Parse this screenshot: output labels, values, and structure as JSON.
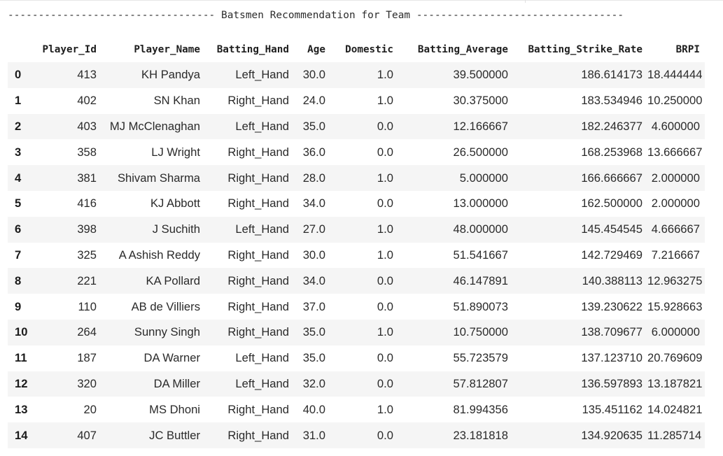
{
  "heading": {
    "text": "---------------------------------- Batsmen Recommendation for Team ----------------------------------"
  },
  "table": {
    "columns": [
      "",
      "Player_Id",
      "Player_Name",
      "Batting_Hand",
      "Age",
      "Domestic",
      "Batting_Average",
      "Batting_Strike_Rate",
      "BRPI"
    ],
    "rows": [
      [
        "0",
        "413",
        "KH Pandya",
        "Left_Hand",
        "30.0",
        "1.0",
        "39.500000",
        "186.614173",
        "18.444444"
      ],
      [
        "1",
        "402",
        "SN Khan",
        "Right_Hand",
        "24.0",
        "1.0",
        "30.375000",
        "183.534946",
        "10.250000"
      ],
      [
        "2",
        "403",
        "MJ McClenaghan",
        "Left_Hand",
        "35.0",
        "0.0",
        "12.166667",
        "182.246377",
        "4.600000"
      ],
      [
        "3",
        "358",
        "LJ Wright",
        "Right_Hand",
        "36.0",
        "0.0",
        "26.500000",
        "168.253968",
        "13.666667"
      ],
      [
        "4",
        "381",
        "Shivam Sharma",
        "Right_Hand",
        "28.0",
        "1.0",
        "5.000000",
        "166.666667",
        "2.000000"
      ],
      [
        "5",
        "416",
        "KJ Abbott",
        "Right_Hand",
        "34.0",
        "0.0",
        "13.000000",
        "162.500000",
        "2.000000"
      ],
      [
        "6",
        "398",
        "J Suchith",
        "Left_Hand",
        "27.0",
        "1.0",
        "48.000000",
        "145.454545",
        "4.666667"
      ],
      [
        "7",
        "325",
        "A Ashish Reddy",
        "Right_Hand",
        "30.0",
        "1.0",
        "51.541667",
        "142.729469",
        "7.216667"
      ],
      [
        "8",
        "221",
        "KA Pollard",
        "Right_Hand",
        "34.0",
        "0.0",
        "46.147891",
        "140.388113",
        "12.963275"
      ],
      [
        "9",
        "110",
        "AB de Villiers",
        "Right_Hand",
        "37.0",
        "0.0",
        "51.890073",
        "139.230622",
        "15.928663"
      ],
      [
        "10",
        "264",
        "Sunny Singh",
        "Right_Hand",
        "35.0",
        "1.0",
        "10.750000",
        "138.709677",
        "6.000000"
      ],
      [
        "11",
        "187",
        "DA Warner",
        "Left_Hand",
        "35.0",
        "0.0",
        "55.723579",
        "137.123710",
        "20.769609"
      ],
      [
        "12",
        "320",
        "DA Miller",
        "Left_Hand",
        "32.0",
        "0.0",
        "57.812807",
        "136.597893",
        "13.187821"
      ],
      [
        "13",
        "20",
        "MS Dhoni",
        "Right_Hand",
        "40.0",
        "1.0",
        "81.994356",
        "135.451162",
        "14.024821"
      ],
      [
        "14",
        "407",
        "JC Buttler",
        "Right_Hand",
        "31.0",
        "0.0",
        "23.181818",
        "134.920635",
        "11.285714"
      ]
    ]
  }
}
